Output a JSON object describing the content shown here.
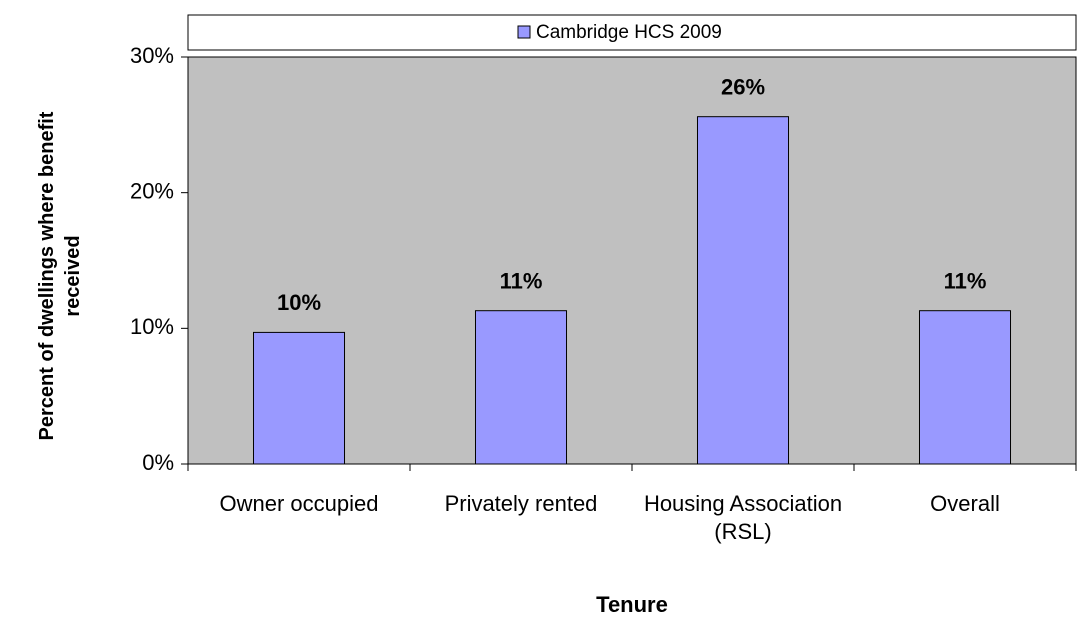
{
  "chart_data": {
    "type": "bar",
    "x_label": "Tenure",
    "y_label": "Percent of dwellings where benefit received",
    "categories": [
      "Owner occupied",
      "Privately rented",
      "Housing Association (RSL)",
      "Overall"
    ],
    "series": [
      {
        "name": "Cambridge HCS 2009",
        "color": "#9999ff",
        "values": [
          9.7,
          11.3,
          25.6,
          11.3
        ],
        "value_labels": [
          "10%",
          "11%",
          "26%",
          "11%"
        ]
      }
    ],
    "ylim": [
      0,
      30
    ],
    "yticks": [
      {
        "value": 0,
        "label": "0%"
      },
      {
        "value": 10,
        "label": "10%"
      },
      {
        "value": 20,
        "label": "20%"
      },
      {
        "value": 30,
        "label": "30%"
      }
    ],
    "legend": "top",
    "plot_background": "#c0c0c0"
  }
}
